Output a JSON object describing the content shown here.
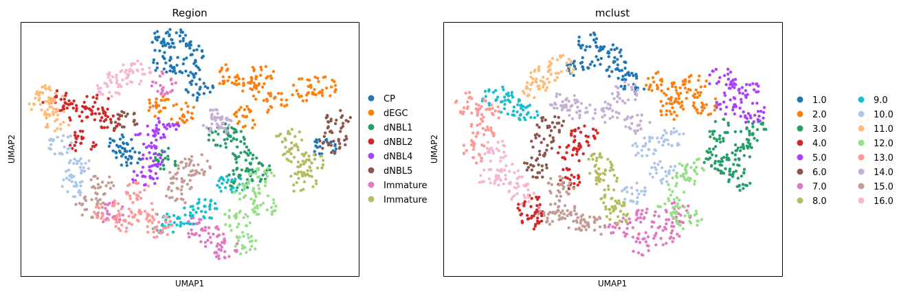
{
  "chart_data": [
    {
      "type": "scatter",
      "title": "Region",
      "xlabel": "UMAP1",
      "ylabel": "UMAP2",
      "xlim": [
        0,
        100
      ],
      "ylim": [
        0,
        100
      ],
      "grid": false,
      "ticks": false,
      "legend_placement": "right",
      "legend": [
        {
          "label": "CP",
          "color": "#1f77b4"
        },
        {
          "label": "dEGC",
          "color": "#ff7f0e"
        },
        {
          "label": "dNBL1",
          "color": "#279e68"
        },
        {
          "label": "dNBL2",
          "color": "#d62728"
        },
        {
          "label": "dNBL4",
          "color": "#aa40fc"
        },
        {
          "label": "dNBL5",
          "color": "#8c564b"
        },
        {
          "label": "Immature",
          "color": "#e377c2"
        },
        {
          "label": "Immature",
          "color": "#b5bd61"
        }
      ],
      "clusters": [
        {
          "color": "#1f77b4",
          "points": [
            [
              40.7,
              92.4
            ],
            [
              45.7,
              93.8
            ],
            [
              50.8,
              88.4
            ],
            [
              42.7,
              84.3
            ],
            [
              48.8,
              81.6
            ],
            [
              52.8,
              73.5
            ],
            [
              29.5,
              51.9
            ],
            [
              31.5,
              47.8
            ],
            [
              89.4,
              50.5
            ]
          ]
        },
        {
          "color": "#ff7f0e",
          "points": [
            [
              60.9,
              78.9
            ],
            [
              67.1,
              73.5
            ],
            [
              75.2,
              68.1
            ],
            [
              83.3,
              73.5
            ],
            [
              89.4,
              74.9
            ],
            [
              71.1,
              78.9
            ],
            [
              40.7,
              66.8
            ],
            [
              47.8,
              64.1
            ],
            [
              67.1,
              62.7
            ]
          ]
        },
        {
          "color": "#279e68",
          "points": [
            [
              63,
              54.6
            ],
            [
              66,
              46.5
            ],
            [
              65,
              38.4
            ],
            [
              70.1,
              41.1
            ],
            [
              42.7,
              46.5
            ],
            [
              59,
              56
            ]
          ]
        },
        {
          "color": "#d62728",
          "points": [
            [
              10.2,
              69.5
            ],
            [
              16.3,
              65.4
            ],
            [
              22.4,
              68.1
            ],
            [
              18.3,
              53.2
            ],
            [
              25.4,
              61.4
            ]
          ]
        },
        {
          "color": "#aa40fc",
          "points": [
            [
              37.6,
              54.6
            ],
            [
              42.7,
              58.6
            ],
            [
              39.6,
              46.5
            ],
            [
              36.6,
              39.7
            ]
          ]
        },
        {
          "color": "#8c564b",
          "points": [
            [
              93.5,
              61.4
            ],
            [
              92.5,
              53.2
            ],
            [
              30.5,
              61.4
            ]
          ]
        },
        {
          "color": "#e377c2",
          "points": [
            [
              50.8,
              19.5
            ],
            [
              56.9,
              15.4
            ],
            [
              61,
              10
            ],
            [
              26.4,
              24.9
            ],
            [
              42.7,
              76.2
            ]
          ]
        },
        {
          "color": "#b5bd61",
          "points": [
            [
              81.3,
              46.5
            ],
            [
              86.4,
              43.8
            ],
            [
              83.3,
              37
            ],
            [
              79.3,
              54.6
            ]
          ]
        },
        {
          "color": "#17becf",
          "points": [
            [
              48.8,
              23.5
            ],
            [
              53.9,
              26.2
            ],
            [
              62,
              35.7
            ],
            [
              42.7,
              20.8
            ]
          ]
        },
        {
          "color": "#aec7e8",
          "points": [
            [
              12.2,
              51.9
            ],
            [
              16.3,
              43.8
            ],
            [
              15.2,
              35.7
            ]
          ]
        },
        {
          "color": "#ffbb78",
          "points": [
            [
              6.1,
              68.1
            ],
            [
              10.2,
              61.4
            ],
            [
              8.1,
              70.8
            ]
          ]
        },
        {
          "color": "#98df8a",
          "points": [
            [
              67.1,
              33
            ],
            [
              64,
              22.2
            ],
            [
              66.1,
              12.7
            ],
            [
              72.2,
              27.6
            ],
            [
              71.1,
              38.4
            ]
          ]
        },
        {
          "color": "#ff9896",
          "points": [
            [
              34.6,
              33
            ],
            [
              36.6,
              24.9
            ],
            [
              30.5,
              22.2
            ],
            [
              40.7,
              19.5
            ],
            [
              25.4,
              26.2
            ]
          ]
        },
        {
          "color": "#c5b0d5",
          "points": [
            [
              56.9,
              61.4
            ],
            [
              59,
              58.6
            ]
          ]
        },
        {
          "color": "#c49c94",
          "points": [
            [
              23.4,
              35.7
            ],
            [
              20.3,
              27.6
            ],
            [
              47.8,
              41.1
            ],
            [
              52,
              43.8
            ],
            [
              46.7,
              33
            ]
          ]
        },
        {
          "color": "#f7b6d2",
          "points": [
            [
              29.5,
              78.9
            ],
            [
              34.6,
              80.3
            ],
            [
              26.4,
              74.9
            ]
          ]
        }
      ]
    },
    {
      "type": "scatter",
      "title": "mclust",
      "xlabel": "UMAP1",
      "ylabel": "UMAP2",
      "xlim": [
        0,
        100
      ],
      "ylim": [
        0,
        100
      ],
      "grid": false,
      "ticks": false,
      "legend_placement": "right",
      "legend": [
        {
          "label": "1.0",
          "color": "#1f77b4"
        },
        {
          "label": "2.0",
          "color": "#ff7f0e"
        },
        {
          "label": "3.0",
          "color": "#279e68"
        },
        {
          "label": "4.0",
          "color": "#d62728"
        },
        {
          "label": "5.0",
          "color": "#aa40fc"
        },
        {
          "label": "6.0",
          "color": "#8c564b"
        },
        {
          "label": "7.0",
          "color": "#e377c2"
        },
        {
          "label": "8.0",
          "color": "#b5bd61"
        },
        {
          "label": "9.0",
          "color": "#17becf"
        },
        {
          "label": "10.0",
          "color": "#aec7e8"
        },
        {
          "label": "11.0",
          "color": "#ffbb78"
        },
        {
          "label": "12.0",
          "color": "#98df8a"
        },
        {
          "label": "13.0",
          "color": "#ff9896"
        },
        {
          "label": "14.0",
          "color": "#c5b0d5"
        },
        {
          "label": "15.0",
          "color": "#c49c94"
        },
        {
          "label": "16.0",
          "color": "#f7b6d2"
        }
      ],
      "clusters": [
        {
          "color": "#1f77b4",
          "points": [
            [
              43.6,
              92.4
            ],
            [
              48.7,
              87
            ],
            [
              51.7,
              81.6
            ],
            [
              40.6,
              83
            ],
            [
              55.8,
              76.2
            ]
          ]
        },
        {
          "color": "#ff7f0e",
          "points": [
            [
              63.9,
              76.2
            ],
            [
              69,
              72.2
            ],
            [
              74,
              74.9
            ],
            [
              77,
              68.1
            ],
            [
              66.9,
              65.4
            ]
          ]
        },
        {
          "color": "#279e68",
          "points": [
            [
              82.2,
              57.3
            ],
            [
              88.2,
              50.5
            ],
            [
              84.2,
              43.8
            ],
            [
              80.1,
              46.5
            ],
            [
              91.3,
              57.3
            ],
            [
              87.2,
              38.4
            ]
          ]
        },
        {
          "color": "#d62728",
          "points": [
            [
              25.4,
              27.6
            ],
            [
              26.4,
              22.2
            ],
            [
              37.5,
              49.2
            ],
            [
              41.6,
              55.9
            ],
            [
              36.5,
              38.4
            ]
          ]
        },
        {
          "color": "#aa40fc",
          "points": [
            [
              82.2,
              77.6
            ],
            [
              89.2,
              73.5
            ],
            [
              91.3,
              64.1
            ],
            [
              84.2,
              68.1
            ]
          ]
        },
        {
          "color": "#8c564b",
          "points": [
            [
              29.4,
              51.9
            ],
            [
              31.4,
              60
            ],
            [
              27.4,
              42.4
            ]
          ]
        },
        {
          "color": "#e377c2",
          "points": [
            [
              51.7,
              19.5
            ],
            [
              58.8,
              12.7
            ],
            [
              65.9,
              16.8
            ],
            [
              69,
              24.9
            ],
            [
              59.8,
              22.2
            ]
          ]
        },
        {
          "color": "#b5bd61",
          "points": [
            [
              47.7,
              38.4
            ],
            [
              49.7,
              30.3
            ],
            [
              45.6,
              43.8
            ],
            [
              51.7,
              24.9
            ]
          ]
        },
        {
          "color": "#17becf",
          "points": [
            [
              19.3,
              68.1
            ],
            [
              24.3,
              64.1
            ],
            [
              15.2,
              70.8
            ]
          ]
        },
        {
          "color": "#aec7e8",
          "points": [
            [
              59.8,
              50.5
            ],
            [
              64.9,
              41.1
            ],
            [
              55.8,
              33
            ],
            [
              67,
              54.6
            ]
          ]
        },
        {
          "color": "#ffbb78",
          "points": [
            [
              29.4,
              78.9
            ],
            [
              34.5,
              83
            ],
            [
              26.4,
              74.9
            ]
          ]
        },
        {
          "color": "#98df8a",
          "points": [
            [
              70,
              37
            ],
            [
              67,
              27.6
            ],
            [
              72,
              22.2
            ],
            [
              73,
              42.4
            ]
          ]
        },
        {
          "color": "#ff9896",
          "points": [
            [
              7.1,
              68.1
            ],
            [
              11.2,
              57.3
            ],
            [
              9.1,
              49.2
            ],
            [
              13.2,
              65.4
            ]
          ]
        },
        {
          "color": "#c5b0d5",
          "points": [
            [
              39.6,
              65.4
            ],
            [
              47.7,
              64.1
            ],
            [
              53.8,
              72.2
            ],
            [
              56.8,
              60
            ],
            [
              35.5,
              68.1
            ]
          ]
        },
        {
          "color": "#c49c94",
          "points": [
            [
              35.5,
              27.6
            ],
            [
              39.6,
              20.8
            ],
            [
              31.4,
              24.9
            ],
            [
              43.6,
              19.5
            ],
            [
              34.5,
              35.7
            ]
          ]
        },
        {
          "color": "#f7b6d2",
          "points": [
            [
              15.2,
              49.2
            ],
            [
              19.3,
              39.7
            ],
            [
              23.3,
              33
            ],
            [
              14.2,
              38.4
            ]
          ]
        }
      ]
    }
  ]
}
